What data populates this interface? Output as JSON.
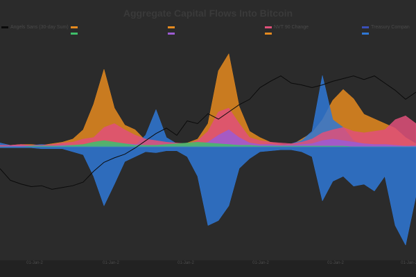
{
  "chart_data": {
    "type": "area",
    "title": "Aggregate Capital Flows Into Bitcoin",
    "xlabel": "",
    "ylabel": "",
    "x_ticks": [
      "01-Jan-2",
      "01-Jan-2",
      "01-Jan-2",
      "01-Jan-2",
      "01-Jan-2",
      "01-Jan-2"
    ],
    "legend_placement": "top",
    "grid": false,
    "colors": {
      "background": "#2b2b2b",
      "axis_bar": "#222222"
    },
    "series": [
      {
        "name": "Angels Sans (30-day Sum)",
        "kind": "price-line",
        "color": "#0a0a0a",
        "values": [
          0.05,
          -0.08,
          -0.12,
          -0.15,
          -0.14,
          -0.18,
          -0.16,
          -0.14,
          -0.1,
          0.02,
          0.12,
          0.17,
          0.21,
          0.28,
          0.36,
          0.44,
          0.5,
          0.42,
          0.58,
          0.55,
          0.66,
          0.6,
          0.68,
          0.76,
          0.82,
          0.95,
          1.02,
          1.08,
          1.0,
          0.98,
          0.95,
          0.98,
          1.02,
          1.05,
          1.08,
          1.04,
          1.08,
          1.0,
          0.92,
          0.82,
          0.9
        ]
      },
      {
        "name": "",
        "kind": "flow",
        "color": "#e58a1f",
        "values": [
          0.02,
          0.02,
          0.03,
          0.03,
          0.02,
          0.04,
          0.06,
          0.1,
          0.22,
          0.55,
          1.0,
          0.5,
          0.28,
          0.22,
          0.08,
          0.06,
          0.04,
          0.02,
          0.05,
          0.1,
          0.3,
          0.98,
          1.2,
          0.52,
          0.2,
          0.12,
          0.06,
          0.03,
          0.02,
          0.1,
          0.18,
          0.35,
          0.6,
          0.74,
          0.62,
          0.42,
          0.36,
          0.3,
          0.24,
          0.12,
          0.04
        ]
      },
      {
        "name": "",
        "kind": "flow",
        "color": "#2f78d6",
        "values": [
          0.05,
          0.02,
          0.01,
          0.02,
          0.03,
          0.02,
          0.01,
          0.02,
          0.02,
          0.02,
          0.02,
          0.03,
          0.02,
          0.02,
          0.15,
          0.48,
          0.12,
          0.04,
          0.02,
          0.02,
          0.02,
          0.03,
          0.05,
          0.03,
          0.02,
          0.02,
          0.03,
          0.02,
          0.04,
          0.08,
          0.2,
          0.92,
          0.35,
          0.25,
          0.08,
          0.02,
          0.02,
          0.02,
          0.01,
          0.01,
          0.02
        ]
      },
      {
        "name": "",
        "kind": "flow",
        "color": "#2f78d6",
        "values": [
          -0.01,
          -0.01,
          -0.01,
          -0.01,
          -0.02,
          -0.02,
          -0.02,
          -0.05,
          -0.08,
          -0.3,
          -0.6,
          -0.38,
          -0.15,
          -0.1,
          -0.05,
          -0.06,
          -0.04,
          -0.04,
          -0.1,
          -0.3,
          -0.8,
          -0.75,
          -0.6,
          -0.22,
          -0.12,
          -0.05,
          -0.04,
          -0.03,
          -0.03,
          -0.05,
          -0.1,
          -0.55,
          -0.35,
          -0.3,
          -0.4,
          -0.38,
          -0.45,
          -0.3,
          -0.8,
          -1.0,
          -0.5
        ]
      },
      {
        "name": "NVT 90 Change",
        "kind": "flow",
        "color": "#e0507a",
        "values": [
          0.02,
          0.02,
          0.03,
          0.02,
          0.02,
          0.03,
          0.05,
          0.06,
          0.1,
          0.12,
          0.25,
          0.3,
          0.22,
          0.15,
          0.1,
          0.08,
          0.06,
          0.05,
          0.04,
          0.08,
          0.2,
          0.45,
          0.5,
          0.3,
          0.12,
          0.08,
          0.06,
          0.05,
          0.04,
          0.06,
          0.1,
          0.18,
          0.22,
          0.25,
          0.2,
          0.18,
          0.2,
          0.22,
          0.35,
          0.4,
          0.3
        ]
      },
      {
        "name": "",
        "kind": "flow",
        "color": "#9c5bd3",
        "values": [
          0.0,
          0.01,
          0.01,
          0.01,
          0.01,
          0.01,
          0.02,
          0.02,
          0.02,
          0.03,
          0.03,
          0.04,
          0.04,
          0.03,
          0.02,
          0.02,
          0.02,
          0.02,
          0.02,
          0.03,
          0.06,
          0.15,
          0.22,
          0.12,
          0.05,
          0.03,
          0.03,
          0.02,
          0.02,
          0.03,
          0.04,
          0.08,
          0.1,
          0.08,
          0.06,
          0.04,
          0.03,
          0.03,
          0.02,
          0.01,
          0.01
        ]
      },
      {
        "name": "",
        "kind": "flow",
        "color": "#3fbf6a",
        "values": [
          0.0,
          0.0,
          0.0,
          0.01,
          0.01,
          0.01,
          0.01,
          0.02,
          0.03,
          0.06,
          0.08,
          0.06,
          0.04,
          0.02,
          0.02,
          0.02,
          0.03,
          0.04,
          0.05,
          0.06,
          0.05,
          0.04,
          0.03,
          0.02,
          0.02,
          0.01,
          0.01,
          0.01,
          0.01,
          0.01,
          0.01,
          0.01,
          0.01,
          0.01,
          0.0,
          0.0,
          0.0,
          0.0,
          0.0,
          0.0,
          0.0
        ]
      }
    ],
    "legend": [
      {
        "label": "Angels Sans (30-day Sum)",
        "color": "#0a0a0a"
      },
      {
        "label": "",
        "color": "#e58a1f"
      },
      {
        "label": "",
        "color": "#e58a1f"
      },
      {
        "label": "NVT 90 Change",
        "color": "#e0507a"
      },
      {
        "label": "Treasury Compan",
        "color": "#3a4fb8"
      },
      {
        "label": "",
        "color": "#3fbf6a"
      },
      {
        "label": "",
        "color": "#9c5bd3"
      },
      {
        "label": "",
        "color": "#e58a1f"
      },
      {
        "label": "",
        "color": "#2f78d6"
      }
    ]
  }
}
